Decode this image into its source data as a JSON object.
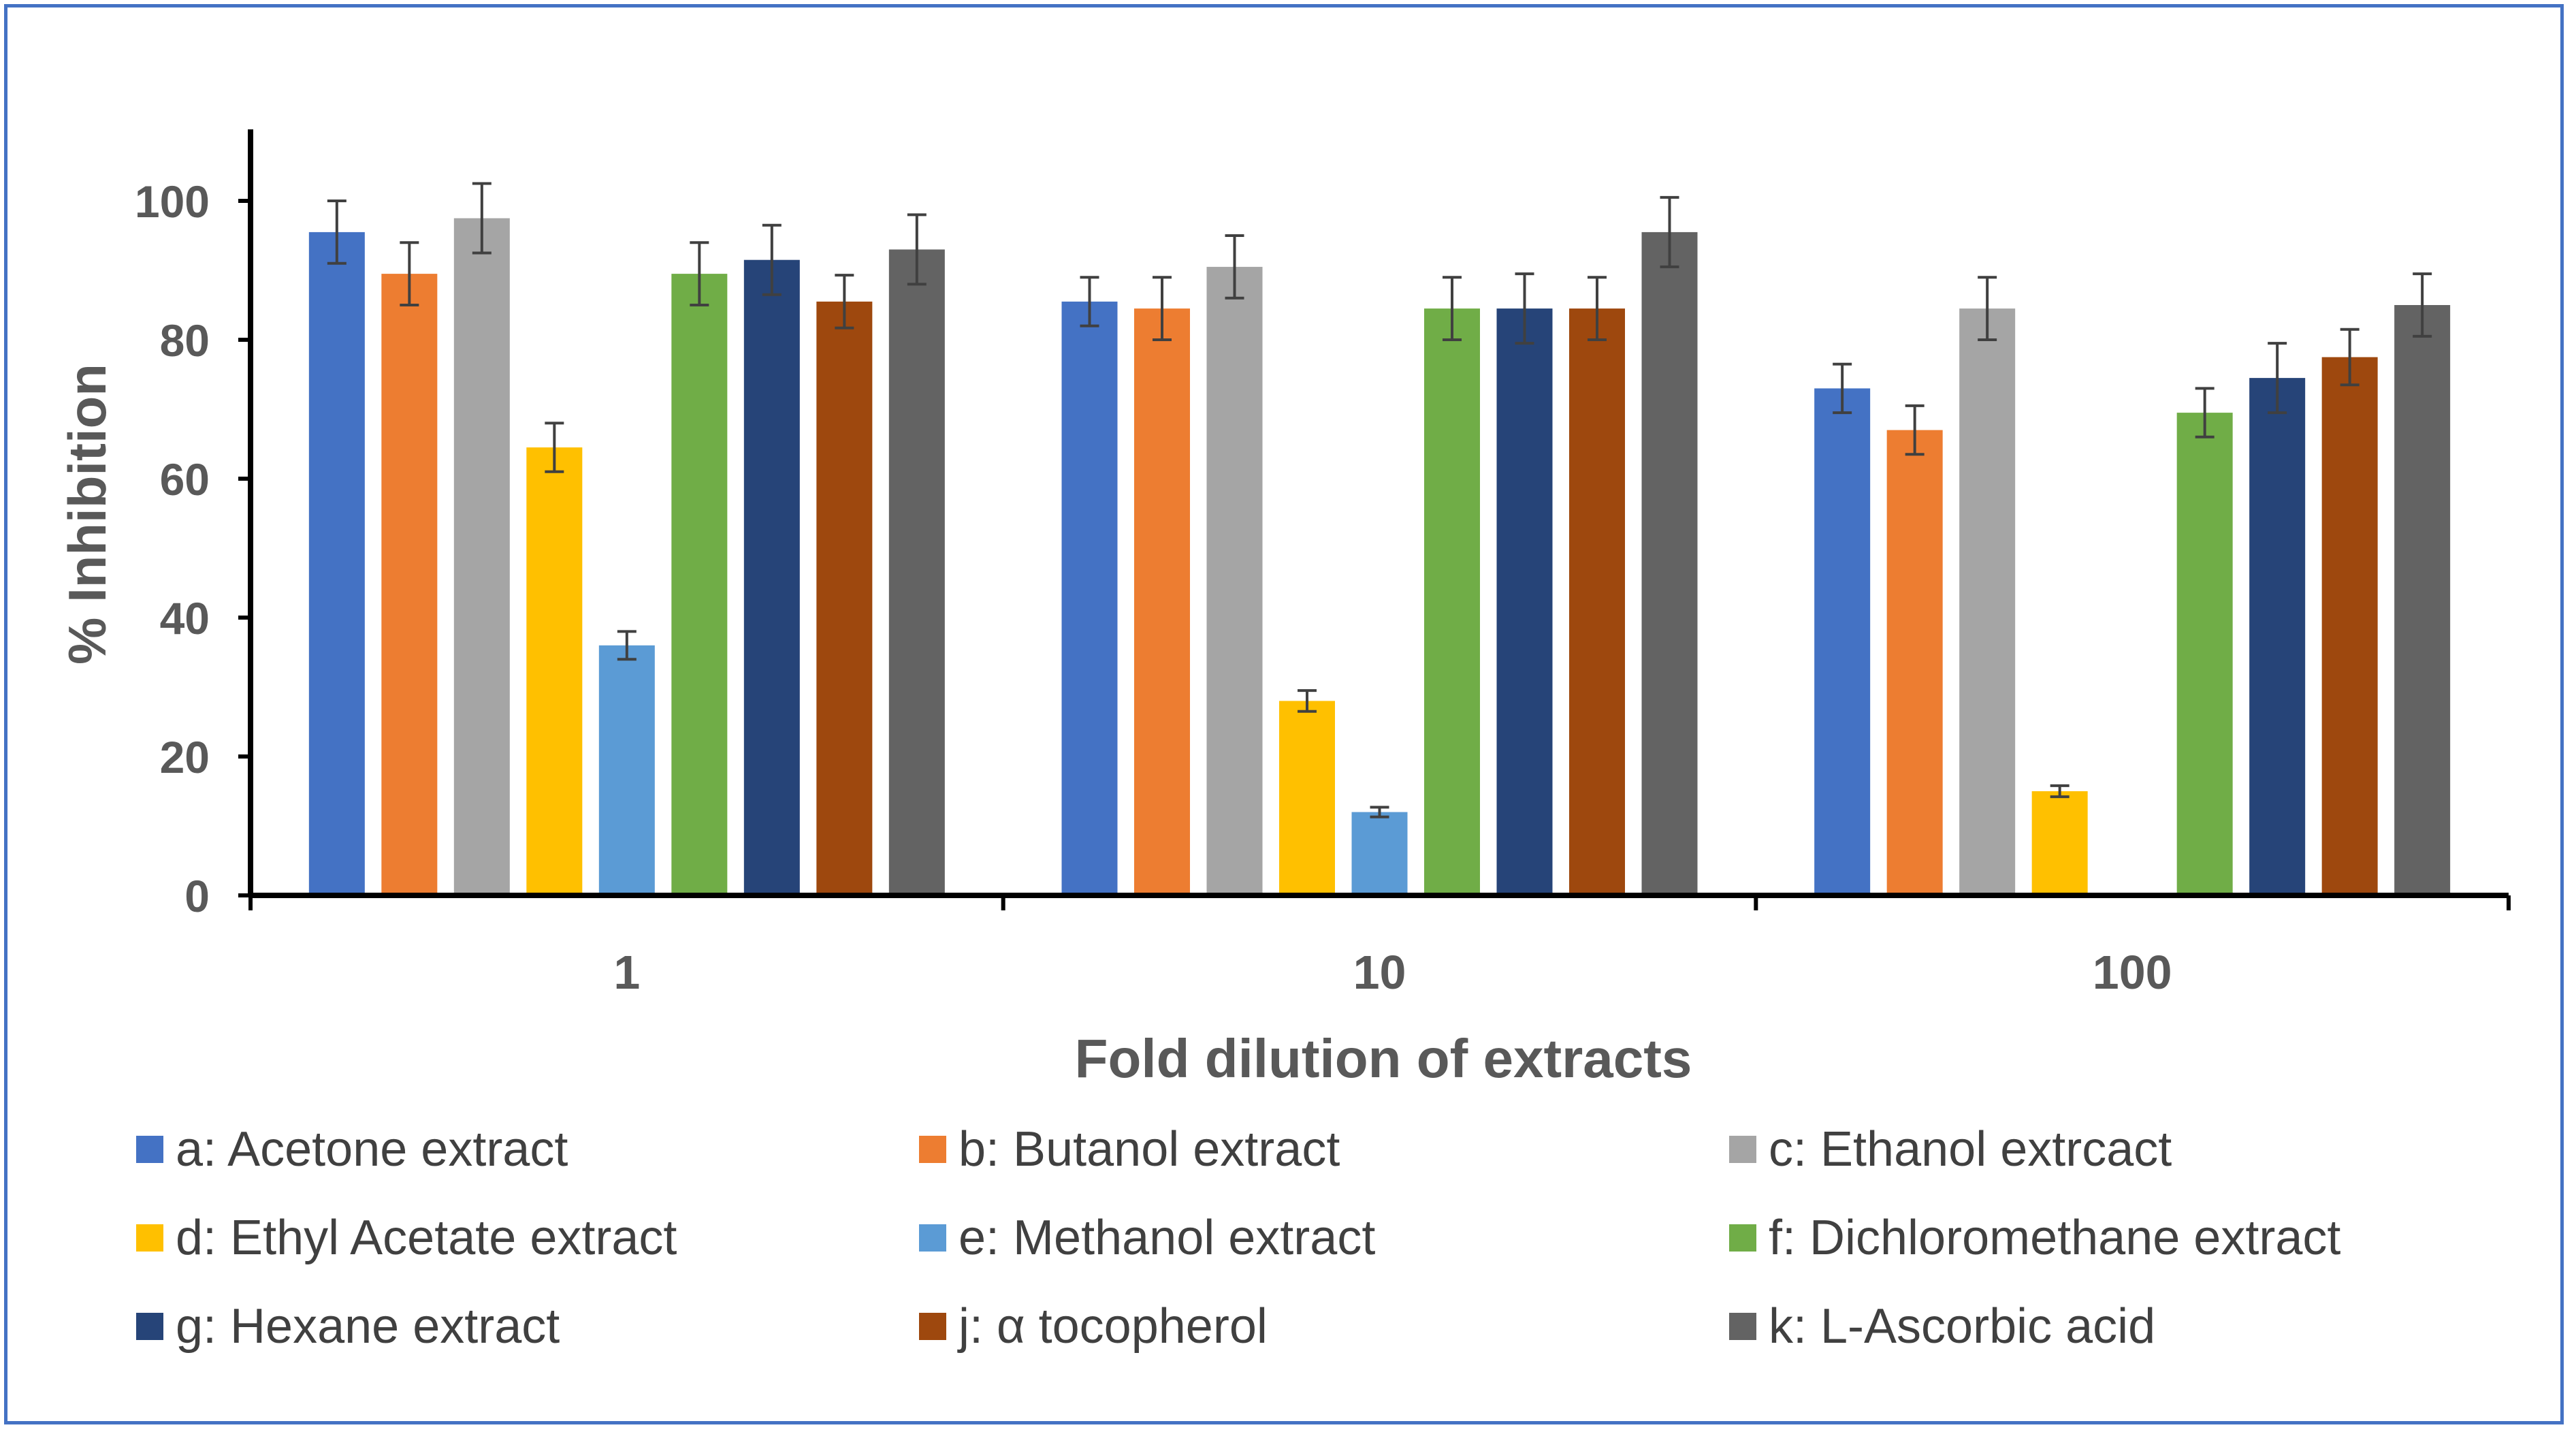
{
  "chart_data": {
    "type": "bar",
    "categories": [
      "1",
      "10",
      "100"
    ],
    "xlabel": "Fold dilution of extracts",
    "ylabel": "% Inhibition",
    "ylim": [
      0,
      100
    ],
    "yticks": [
      0,
      20,
      40,
      60,
      80,
      100
    ],
    "grid": false,
    "legend_position": "bottom",
    "error_bars": true,
    "series": [
      {
        "name": "a: Acetone extract",
        "color": "#4472c4",
        "values": [
          95.5,
          85.5,
          73.0
        ],
        "errors": [
          4.5,
          3.5,
          3.5
        ]
      },
      {
        "name": "b: Butanol extract",
        "color": "#ed7d31",
        "values": [
          89.5,
          84.5,
          67.0
        ],
        "errors": [
          4.5,
          4.5,
          3.5
        ]
      },
      {
        "name": "c: Ethanol extrcact",
        "color": "#a5a5a5",
        "values": [
          97.5,
          90.5,
          84.5
        ],
        "errors": [
          5.0,
          4.5,
          4.5
        ]
      },
      {
        "name": "d: Ethyl Acetate extract",
        "color": "#ffc000",
        "values": [
          64.5,
          28.0,
          15.0
        ],
        "errors": [
          3.5,
          1.5,
          0.8
        ]
      },
      {
        "name": "e: Methanol extract",
        "color": "#5b9bd5",
        "values": [
          36.0,
          12.0,
          null
        ],
        "errors": [
          2.0,
          0.7,
          null
        ]
      },
      {
        "name": "f: Dichloromethane extract",
        "color": "#70ad47",
        "values": [
          89.5,
          84.5,
          69.5
        ],
        "errors": [
          4.5,
          4.5,
          3.5
        ]
      },
      {
        "name": "g: Hexane extract",
        "color": "#264478",
        "values": [
          91.5,
          84.5,
          74.5
        ],
        "errors": [
          5.0,
          5.0,
          5.0
        ]
      },
      {
        "name": "j: α tocopherol",
        "color": "#9e480e",
        "values": [
          85.5,
          84.5,
          77.5
        ],
        "errors": [
          3.8,
          4.5,
          4.0
        ]
      },
      {
        "name": "k: L-Ascorbic acid",
        "color": "#636363",
        "values": [
          93.0,
          95.5,
          85.0
        ],
        "errors": [
          5.0,
          5.0,
          4.5
        ]
      }
    ]
  }
}
